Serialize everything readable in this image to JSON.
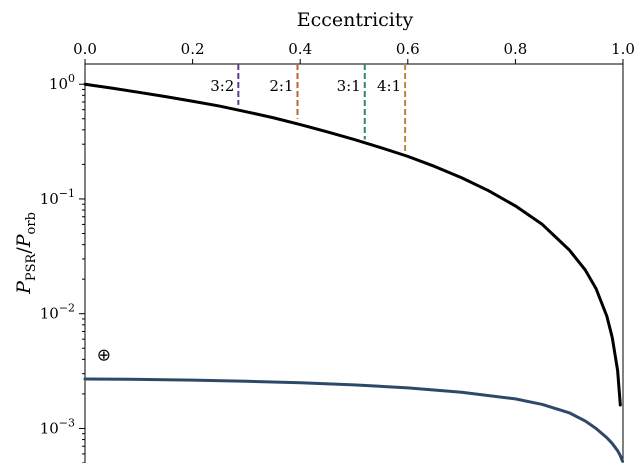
{
  "chart_data": {
    "type": "line",
    "title": "",
    "xlabel": "Eccentricity",
    "xlabel_position": "top",
    "ylabel": {
      "base": "P",
      "num_sub": "PSR",
      "sep": "/",
      "den_base": "P",
      "den_sub": "orb"
    },
    "xlim": [
      0.0,
      1.0
    ],
    "ylim": [
      0.0005,
      1.5
    ],
    "yscale": "log",
    "grid": false,
    "legend": "none",
    "xticks": [
      {
        "value": 0.0,
        "label": "0.0"
      },
      {
        "value": 0.2,
        "label": "0.2"
      },
      {
        "value": 0.4,
        "label": "0.4"
      },
      {
        "value": 0.6,
        "label": "0.6"
      },
      {
        "value": 0.8,
        "label": "0.8"
      },
      {
        "value": 1.0,
        "label": "1.0"
      }
    ],
    "yticks": [
      {
        "value": 1,
        "base": "10",
        "exp": "0"
      },
      {
        "value": 0.1,
        "base": "10",
        "exp": "−1"
      },
      {
        "value": 0.01,
        "base": "10",
        "exp": "−2"
      },
      {
        "value": 0.001,
        "base": "10",
        "exp": "−3"
      }
    ],
    "series": [
      {
        "color": "#000000",
        "x": [
          0.0,
          0.05,
          0.1,
          0.15,
          0.2,
          0.25,
          0.3,
          0.35,
          0.4,
          0.45,
          0.5,
          0.55,
          0.6,
          0.65,
          0.7,
          0.75,
          0.8,
          0.85,
          0.9,
          0.93,
          0.95,
          0.97,
          0.98,
          0.99,
          0.995
        ],
        "y": [
          1.0,
          0.925,
          0.85,
          0.78,
          0.71,
          0.645,
          0.575,
          0.51,
          0.445,
          0.385,
          0.33,
          0.28,
          0.235,
          0.192,
          0.153,
          0.118,
          0.087,
          0.06,
          0.036,
          0.024,
          0.0165,
          0.0095,
          0.0062,
          0.0032,
          0.0016
        ]
      },
      {
        "color": "#2c4a68",
        "x": [
          0.0,
          0.1,
          0.2,
          0.3,
          0.4,
          0.5,
          0.6,
          0.7,
          0.8,
          0.85,
          0.9,
          0.93,
          0.95,
          0.97,
          0.98,
          0.99,
          0.995,
          0.999
        ],
        "y": [
          0.0027,
          0.00268,
          0.00264,
          0.00258,
          0.0025,
          0.0024,
          0.00226,
          0.00207,
          0.00181,
          0.00162,
          0.00137,
          0.00116,
          0.001,
          0.00083,
          0.00074,
          0.00064,
          0.00058,
          0.00052
        ]
      }
    ],
    "resonances": [
      {
        "label": "3:2",
        "x": 0.285,
        "y_top": 1.5,
        "y_bottom": 0.66,
        "color": "#5a3d8a"
      },
      {
        "label": "2:1",
        "x": 0.395,
        "y_top": 1.5,
        "y_bottom": 0.5,
        "color": "#c0603a"
      },
      {
        "label": "3:1",
        "x": 0.52,
        "y_top": 1.5,
        "y_bottom": 0.33,
        "color": "#2e8b64"
      },
      {
        "label": "4:1",
        "x": 0.595,
        "y_top": 1.5,
        "y_bottom": 0.25,
        "color": "#b8883c"
      }
    ],
    "annotations": [
      {
        "text": "⊕",
        "x": 0.035,
        "y": 0.0039
      }
    ]
  }
}
